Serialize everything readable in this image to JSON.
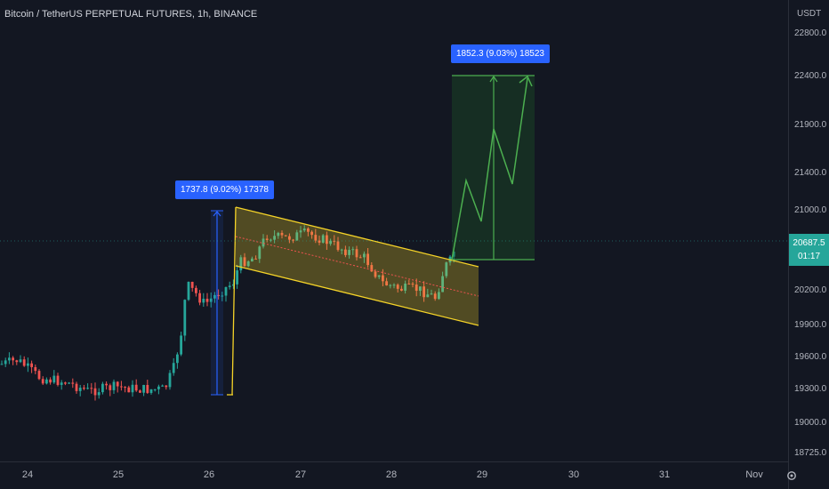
{
  "title": "Bitcoin / TetherUS PERPETUAL FUTURES, 1h, BINANCE",
  "price_axis": {
    "unit": "USDT",
    "labels": [
      "22800.0",
      "22400.0",
      "21900.0",
      "21400.0",
      "21000.0",
      "20200.0",
      "19900.0",
      "19600.0",
      "19300.0",
      "19000.0",
      "18725.0"
    ],
    "current_price": "20687.5",
    "countdown": "01:17"
  },
  "time_axis": {
    "labels": [
      "24",
      "25",
      "26",
      "27",
      "28",
      "29",
      "30",
      "31",
      "Nov"
    ]
  },
  "callouts": {
    "flagpole": "1737.8 (9.02%) 17378",
    "target": "1852.3 (9.03%) 18523"
  },
  "colors": {
    "background": "#131722",
    "up": "#26a69a",
    "down": "#ef5350",
    "channel": "#f5d328",
    "measure": "#2962ff",
    "target": "#4caf50"
  },
  "chart_data": {
    "type": "candlestick",
    "symbol": "BTCUSDT.P",
    "interval": "1h",
    "exchange": "BINANCE",
    "x_ticks": [
      "24",
      "25",
      "26",
      "27",
      "28",
      "29",
      "30",
      "31",
      "Nov"
    ],
    "y_ticks": [
      22800,
      22400,
      21900,
      21400,
      21000,
      20200,
      19900,
      19600,
      19300,
      19000,
      18725
    ],
    "last_price": 20687.5,
    "measurements": [
      {
        "name": "flagpole",
        "label": "1737.8 (9.02%) 17378"
      },
      {
        "name": "target",
        "label": "1852.3 (9.03%) 18523"
      }
    ],
    "grid": false
  }
}
